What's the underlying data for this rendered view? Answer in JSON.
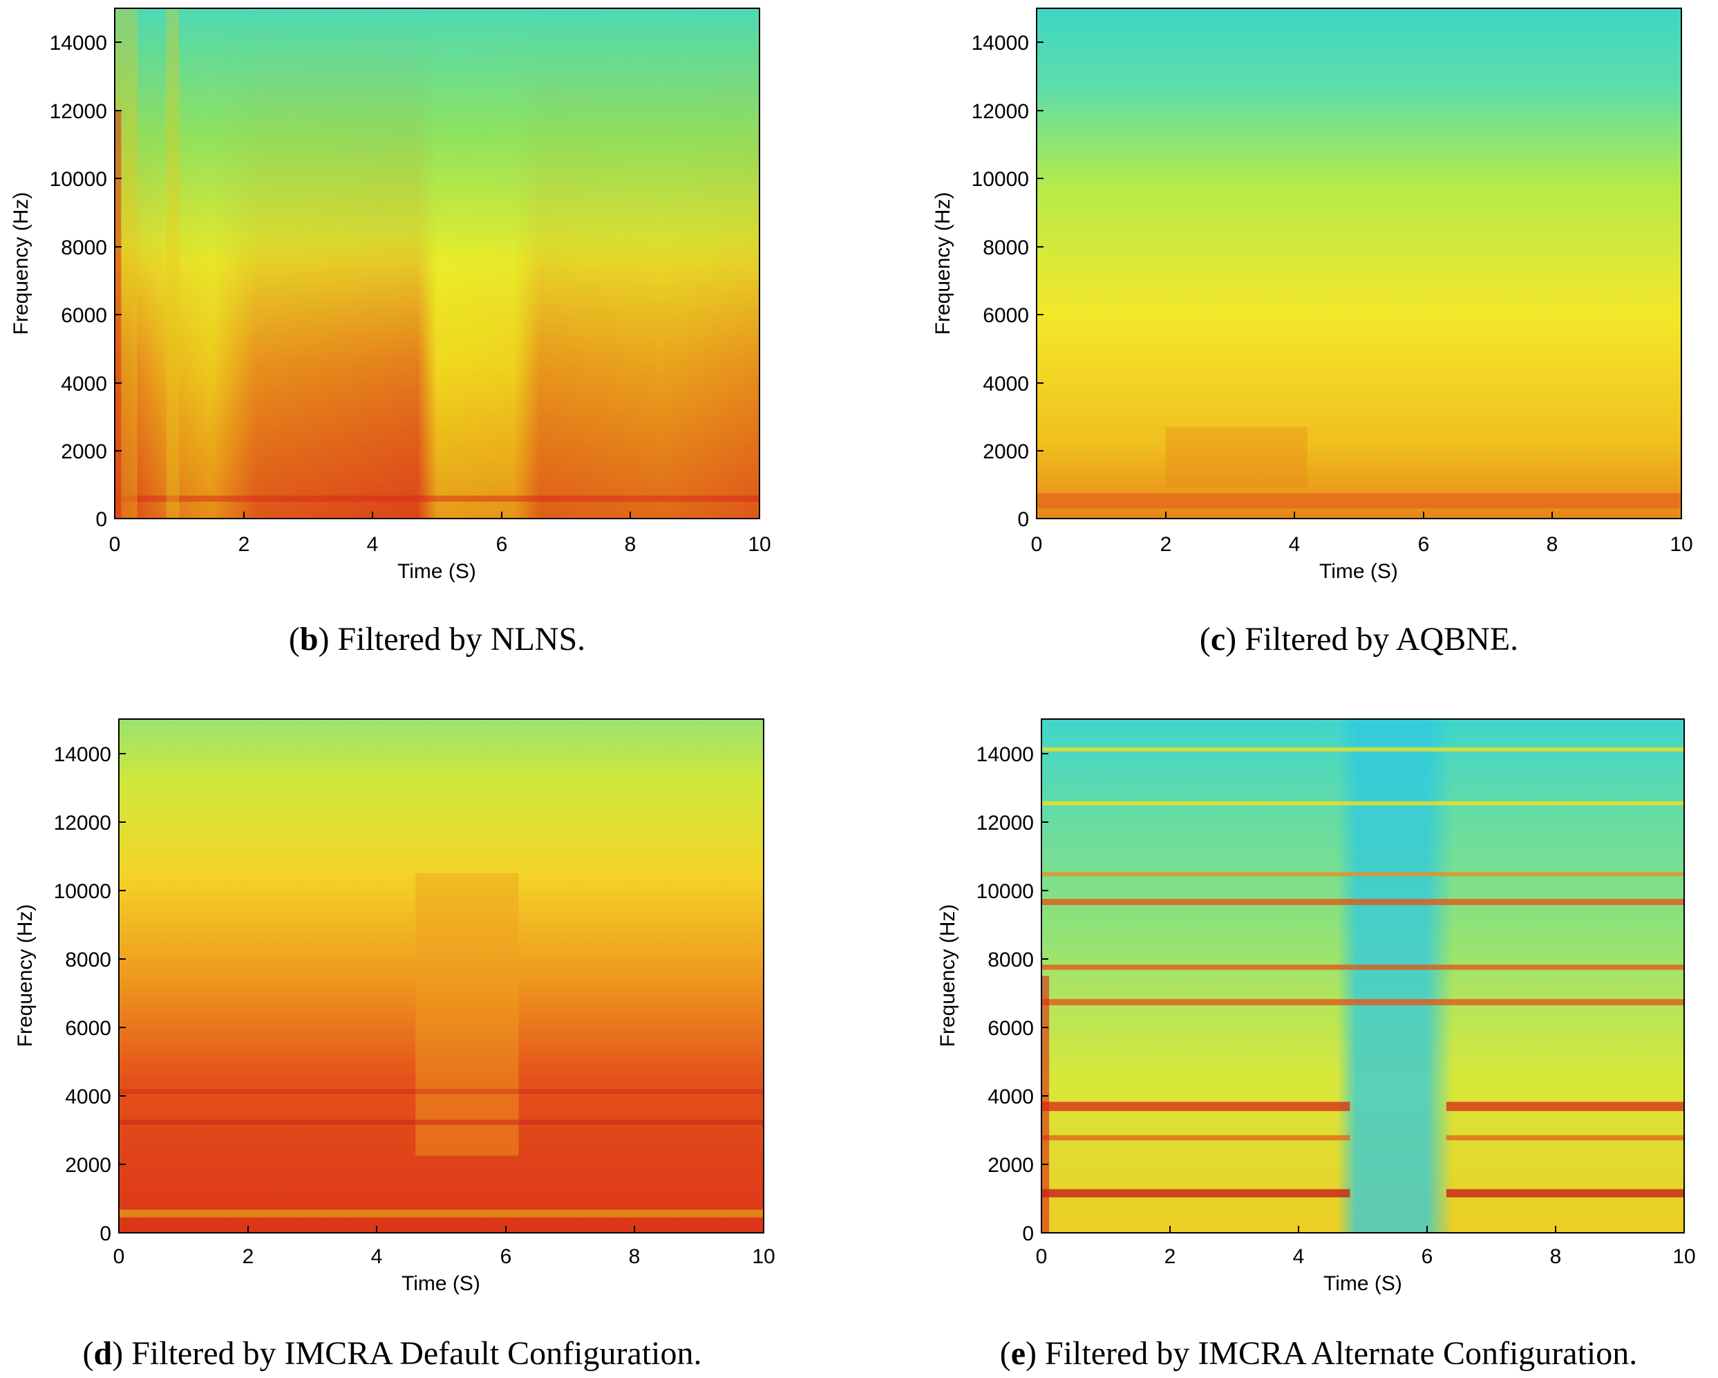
{
  "chart_data": [
    {
      "type": "heatmap",
      "panel_letter": "b",
      "caption": ") Filtered by NLNS.",
      "xlabel": "Time (S)",
      "ylabel": "Frequency (Hz)",
      "xlim": [
        0,
        10
      ],
      "ylim": [
        0,
        15000
      ],
      "xticks": [
        "0",
        "2",
        "4",
        "6",
        "8",
        "10"
      ],
      "yticks": [
        "0",
        "2000",
        "4000",
        "6000",
        "8000",
        "10000",
        "12000",
        "14000"
      ],
      "colormap": "jet",
      "colors": {
        "low": "#3fd8c8",
        "mid": "#f4ef1e",
        "high": "#d8251a"
      }
    },
    {
      "type": "heatmap",
      "panel_letter": "c",
      "caption": ") Filtered by AQBNE.",
      "xlabel": "Time (S)",
      "ylabel": "Frequency (Hz)",
      "xlim": [
        0,
        10
      ],
      "ylim": [
        0,
        15000
      ],
      "xticks": [
        "0",
        "2",
        "4",
        "6",
        "8",
        "10"
      ],
      "yticks": [
        "0",
        "2000",
        "4000",
        "6000",
        "8000",
        "10000",
        "12000",
        "14000"
      ],
      "colormap": "jet",
      "colors": {
        "low": "#3fd8c8",
        "mid": "#f4ef1e",
        "high": "#d8251a"
      }
    },
    {
      "type": "heatmap",
      "panel_letter": "d",
      "caption": ") Filtered by IMCRA Default Configuration.",
      "xlabel": "Time (S)",
      "ylabel": "Frequency (Hz)",
      "xlim": [
        0,
        10
      ],
      "ylim": [
        0,
        15000
      ],
      "xticks": [
        "0",
        "2",
        "4",
        "6",
        "8",
        "10"
      ],
      "yticks": [
        "0",
        "2000",
        "4000",
        "6000",
        "8000",
        "10000",
        "12000",
        "14000"
      ],
      "colormap": "jet",
      "colors": {
        "low": "#3fd8c8",
        "mid": "#f4ef1e",
        "high": "#d8251a"
      }
    },
    {
      "type": "heatmap",
      "panel_letter": "e",
      "caption": ") Filtered by IMCRA Alternate Configuration.",
      "xlabel": "Time (S)",
      "ylabel": "Frequency (Hz)",
      "xlim": [
        0,
        10
      ],
      "ylim": [
        0,
        15000
      ],
      "xticks": [
        "0",
        "2",
        "4",
        "6",
        "8",
        "10"
      ],
      "yticks": [
        "0",
        "2000",
        "4000",
        "6000",
        "8000",
        "10000",
        "12000",
        "14000"
      ],
      "colormap": "jet",
      "colors": {
        "low": "#3fd8c8",
        "mid": "#f4ef1e",
        "high": "#d8251a"
      }
    }
  ]
}
